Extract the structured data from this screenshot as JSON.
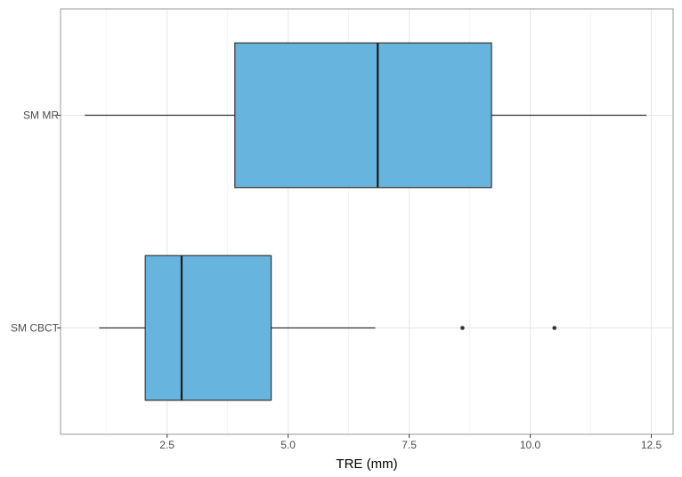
{
  "chart_data": {
    "type": "boxplot",
    "orientation": "horizontal",
    "xlabel": "TRE (mm)",
    "ylabel": "",
    "xlim": [
      0.3,
      12.95
    ],
    "x_ticks": [
      2.5,
      5.0,
      7.5,
      10.0,
      12.5
    ],
    "x_tick_labels": [
      "2.5",
      "5.0",
      "7.5",
      "10.0",
      "12.5"
    ],
    "grid": true,
    "legend": "none",
    "fill_color": "#67b5de",
    "border_color": "#333333",
    "categories": [
      "SM MR",
      "SM CBCT"
    ],
    "boxes": [
      {
        "category": "SM MR",
        "whisker_low": 0.8,
        "q1": 3.9,
        "median": 6.85,
        "q3": 9.2,
        "whisker_high": 12.4,
        "outliers": []
      },
      {
        "category": "SM CBCT",
        "whisker_low": 1.1,
        "q1": 2.05,
        "median": 2.8,
        "q3": 4.65,
        "whisker_high": 6.8,
        "outliers": [
          8.6,
          10.5
        ]
      }
    ]
  }
}
